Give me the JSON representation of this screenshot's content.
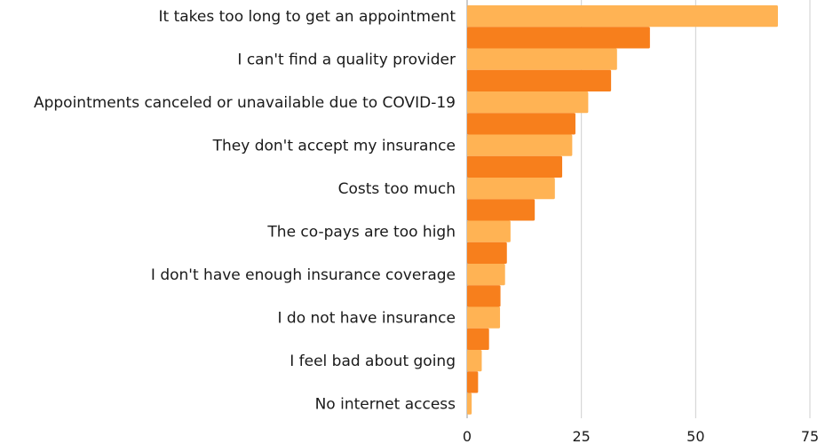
{
  "chart_data": {
    "type": "bar",
    "orientation": "horizontal",
    "categories": [
      "It takes too long to get an appointment",
      "I can't find a quality provider",
      "Appointments canceled or unavailable due to COVID-19",
      "They don't accept my insurance",
      "Costs too much",
      "The co-pays are too high",
      "I don't have enough insurance coverage",
      "I do not have insurance",
      "I feel bad about going",
      "No internet access"
    ],
    "series": [
      {
        "values": [
          68,
          32.8,
          26.5,
          23,
          19.2,
          9.5,
          8.3,
          7.2,
          3.2,
          1
        ],
        "color": "#FFB354"
      },
      {
        "values": [
          40,
          31.5,
          23.7,
          20.8,
          14.8,
          8.7,
          7.3,
          4.8,
          2.4,
          0
        ],
        "color": "#F77F1C"
      }
    ],
    "xlim": [
      0,
      75
    ],
    "xticks": [
      "0",
      "25",
      "50",
      "75"
    ],
    "grid": "vertical",
    "legend": "none",
    "xlabel": "",
    "ylabel": ""
  }
}
